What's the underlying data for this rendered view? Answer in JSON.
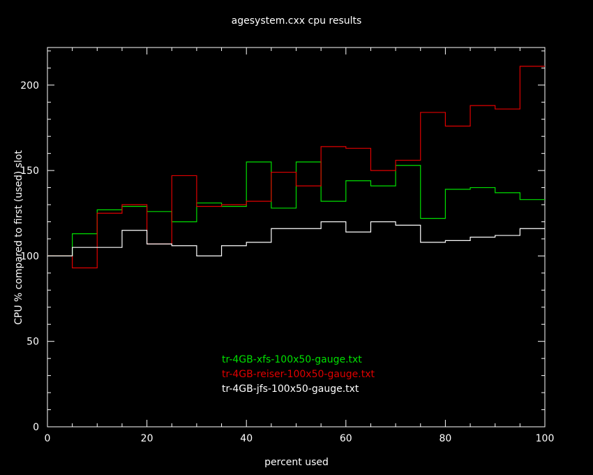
{
  "chart_data": {
    "type": "line",
    "step": true,
    "title": "agesystem.cxx cpu results",
    "xlabel": "percent used",
    "ylabel": "CPU % compared to first (used) slot",
    "xlim": [
      0,
      100
    ],
    "ylim": [
      0,
      222
    ],
    "xticks": [
      0,
      20,
      40,
      60,
      80,
      100
    ],
    "yticks": [
      0,
      50,
      100,
      150,
      200
    ],
    "legend_position": "lower-center",
    "grid": false,
    "x_edges": [
      0,
      5,
      10,
      15,
      20,
      25,
      30,
      35,
      40,
      45,
      50,
      55,
      60,
      65,
      70,
      75,
      80,
      85,
      90,
      95,
      100
    ],
    "series": [
      {
        "name": "tr-4GB-xfs-100x50-gauge.txt",
        "color": "#00e000",
        "values": [
          100,
          113,
          127,
          129,
          126,
          120,
          131,
          129,
          155,
          128,
          155,
          132,
          144,
          141,
          153,
          122,
          139,
          140,
          137,
          133
        ]
      },
      {
        "name": "tr-4GB-reiser-100x50-gauge.txt",
        "color": "#e00000",
        "values": [
          100,
          93,
          125,
          130,
          107,
          147,
          129,
          130,
          132,
          149,
          141,
          164,
          163,
          150,
          156,
          184,
          176,
          188,
          186,
          211
        ]
      },
      {
        "name": "tr-4GB-jfs-100x50-gauge.txt",
        "color": "#ffffff",
        "values": [
          100,
          105,
          105,
          115,
          107,
          106,
          100,
          106,
          108,
          116,
          116,
          120,
          114,
          120,
          118,
          108,
          109,
          111,
          112,
          116
        ]
      }
    ]
  }
}
